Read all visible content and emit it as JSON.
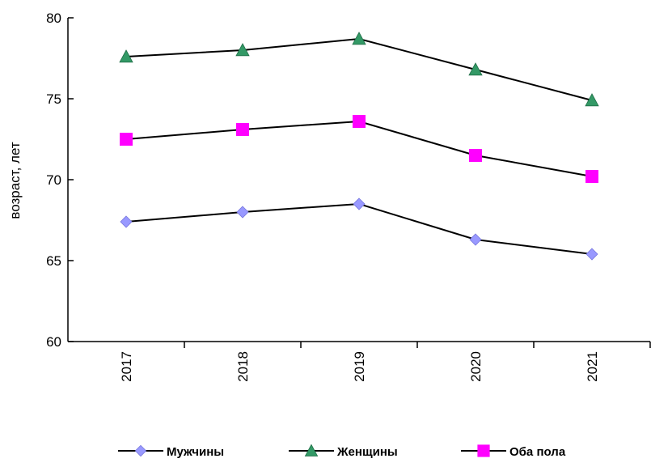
{
  "chart_data": {
    "type": "line",
    "title": "",
    "xlabel": "",
    "ylabel": "возраст, лет",
    "categories": [
      "2017",
      "2018",
      "2019",
      "2020",
      "2021"
    ],
    "ylim": [
      60,
      80
    ],
    "yticks": [
      "60",
      "65",
      "70",
      "75",
      "80"
    ],
    "grid": false,
    "legend_position": "bottom",
    "series": [
      {
        "name": "Мужчины",
        "values": [
          67.4,
          68.0,
          68.5,
          66.3,
          65.4
        ],
        "marker": "diamond",
        "color": "#9999FF"
      },
      {
        "name": "Женщины",
        "values": [
          77.6,
          78.0,
          78.7,
          76.8,
          74.9
        ],
        "marker": "triangle",
        "color": "#339966"
      },
      {
        "name": "Оба пола",
        "values": [
          72.5,
          73.1,
          73.6,
          71.5,
          70.2
        ],
        "marker": "square",
        "color": "#FF00FF"
      }
    ]
  }
}
